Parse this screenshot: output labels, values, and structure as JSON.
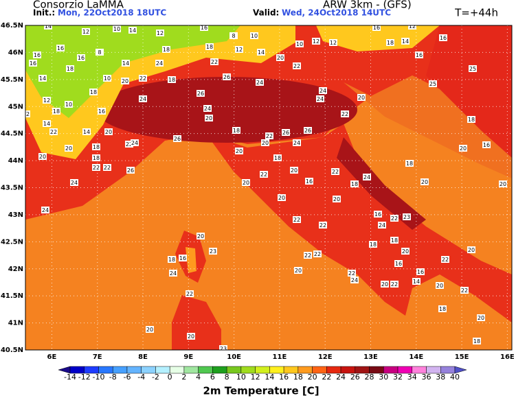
{
  "header": {
    "title": "Consorzio LaMMA",
    "init_label": "Init.:",
    "init": "Mon, 22Oct2018 18UTC",
    "model": "ARW 3km - (GFS)",
    "valid_label": "Valid:",
    "valid": "Wed, 24Oct2018 14UTC",
    "lead": "T=+44h"
  },
  "map": {
    "lon_range": [
      5.42,
      16.1
    ],
    "lat_range": [
      40.5,
      46.5
    ],
    "xticks": [
      {
        "value": 6,
        "label": "6E"
      },
      {
        "value": 7,
        "label": "7E"
      },
      {
        "value": 8,
        "label": "8E"
      },
      {
        "value": 9,
        "label": "9E"
      },
      {
        "value": 10,
        "label": "10E"
      },
      {
        "value": 11,
        "label": "11E"
      },
      {
        "value": 12,
        "label": "12E"
      },
      {
        "value": 13,
        "label": "13E"
      },
      {
        "value": 14,
        "label": "14E"
      },
      {
        "value": 15,
        "label": "15E"
      },
      {
        "value": 16,
        "label": "16E"
      }
    ],
    "yticks": [
      {
        "value": 40.5,
        "label": "40.5N"
      },
      {
        "value": 41,
        "label": "41N"
      },
      {
        "value": 41.5,
        "label": "41.5N"
      },
      {
        "value": 42,
        "label": "42N"
      },
      {
        "value": 42.5,
        "label": "42.5N"
      },
      {
        "value": 43,
        "label": "43N"
      },
      {
        "value": 43.5,
        "label": "43.5N"
      },
      {
        "value": 44,
        "label": "44N"
      },
      {
        "value": 44.5,
        "label": "44.5N"
      },
      {
        "value": 45,
        "label": "45N"
      },
      {
        "value": 45.5,
        "label": "45.5N"
      },
      {
        "value": 46,
        "label": "46N"
      },
      {
        "value": 46.5,
        "label": "46.5N"
      }
    ],
    "labels": [
      14,
      12,
      10,
      14,
      12,
      16,
      8,
      10,
      10,
      12,
      12,
      16,
      12,
      16,
      16,
      16,
      16,
      8,
      18,
      18,
      12,
      14,
      20,
      22,
      18,
      14,
      16,
      16,
      18,
      14,
      24,
      22,
      14,
      10,
      20,
      22,
      18,
      26,
      24,
      25,
      25,
      12,
      10,
      18,
      24,
      26,
      24,
      24,
      20,
      12,
      18,
      16,
      24,
      20,
      22,
      14,
      22,
      26,
      18,
      22,
      26,
      26,
      18,
      14,
      20,
      20,
      18,
      22,
      24,
      20,
      24,
      20,
      16,
      20,
      18,
      20,
      18,
      20,
      22,
      18,
      22,
      22,
      26,
      24,
      20,
      22,
      16,
      18,
      24,
      20,
      20,
      24,
      20,
      20,
      22,
      22,
      16,
      22,
      23,
      24,
      20,
      23,
      18,
      18,
      20,
      22,
      20,
      16,
      18,
      22,
      22,
      20,
      22,
      24,
      24,
      16,
      16,
      22,
      20,
      14,
      22,
      20,
      22,
      18,
      20,
      20,
      20,
      18,
      23
    ]
  },
  "colorbar": {
    "title": "2m Temperature [C]",
    "ticks": [
      -14,
      -12,
      -10,
      -8,
      -6,
      -4,
      -2,
      0,
      2,
      4,
      6,
      8,
      10,
      12,
      14,
      16,
      18,
      20,
      22,
      24,
      26,
      28,
      30,
      32,
      34,
      36,
      38,
      40
    ],
    "colors": [
      "#1a0a8a",
      "#0000c8",
      "#1e3cff",
      "#2878ff",
      "#46a0ff",
      "#64b4ff",
      "#8cd2ff",
      "#b4f0ff",
      "#e6ffe6",
      "#a0e6a0",
      "#50c850",
      "#1ea01e",
      "#78c81e",
      "#a0dc1e",
      "#d2f01e",
      "#fff01e",
      "#ffc81e",
      "#ff9b1e",
      "#ff6414",
      "#e6280f",
      "#c8140f",
      "#a01414",
      "#780a14",
      "#c80080",
      "#f000b4",
      "#ff82dc",
      "#d2b4f0",
      "#9682dc",
      "#5050c8"
    ]
  }
}
